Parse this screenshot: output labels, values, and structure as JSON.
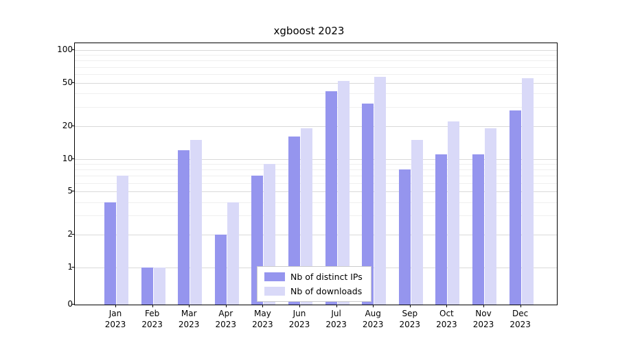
{
  "title": "xgboost 2023",
  "chart_data": {
    "type": "bar",
    "title": "xgboost 2023",
    "categories": [
      "Jan 2023",
      "Feb 2023",
      "Mar 2023",
      "Apr 2023",
      "May 2023",
      "Jun 2023",
      "Jul 2023",
      "Aug 2023",
      "Sep 2023",
      "Oct 2023",
      "Nov 2023",
      "Dec 2023"
    ],
    "series": [
      {
        "name": "Nb of distinct IPs",
        "color": "#9595ee",
        "values": [
          4,
          1,
          12,
          2,
          7,
          16,
          42,
          32,
          8,
          11,
          11,
          28
        ]
      },
      {
        "name": "Nb of downloads",
        "color": "#d9d9f8",
        "values": [
          7,
          1,
          15,
          4,
          9,
          19,
          52,
          57,
          15,
          22,
          19,
          55
        ]
      }
    ],
    "yscale": "symlog",
    "ylim": [
      0,
      100
    ],
    "yticks": [
      0,
      1,
      2,
      5,
      10,
      20,
      50,
      100
    ],
    "minor_gridlines": [
      3,
      4,
      6,
      7,
      8,
      9,
      30,
      40,
      60,
      70,
      80,
      90
    ],
    "xlabel": "",
    "ylabel": "",
    "grid": true,
    "legend_position": "bottom-center"
  }
}
